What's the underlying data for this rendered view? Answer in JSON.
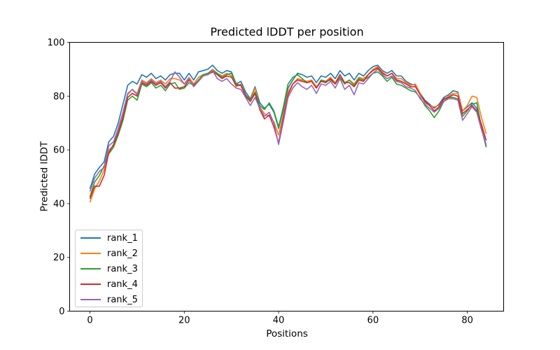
{
  "chart_data": {
    "type": "line",
    "title": "Predicted lDDT per position",
    "xlabel": "Positions",
    "ylabel": "Predicted lDDT",
    "xlim": [
      -4.3,
      87.7
    ],
    "ylim": [
      0,
      100
    ],
    "xticks": [
      0,
      20,
      40,
      60,
      80
    ],
    "yticks": [
      0,
      20,
      40,
      60,
      80,
      100
    ],
    "grid": false,
    "legend_position": "lower left",
    "x": {
      "start": 0,
      "step": 1,
      "count": 85
    },
    "series": [
      {
        "name": "rank_1",
        "color": "#1f77b4",
        "values": [
          45.5,
          51,
          53.5,
          55.5,
          63,
          65,
          70,
          77,
          84,
          85.5,
          84.5,
          88,
          87,
          88.5,
          86.5,
          87.5,
          86,
          88,
          88.5,
          88.5,
          86,
          88.5,
          86,
          89,
          89.5,
          90,
          91.5,
          89.5,
          88.5,
          89.5,
          89,
          84.5,
          85.5,
          81.5,
          79,
          83.5,
          77.5,
          75.5,
          77,
          74,
          68,
          75,
          83,
          86,
          88.5,
          88,
          87,
          87.5,
          85,
          87.5,
          87,
          88.5,
          86.5,
          89.5,
          87.5,
          88.5,
          86,
          88.5,
          87.5,
          89.5,
          91,
          91.5,
          89.5,
          88.5,
          89.5,
          87.5,
          87.5,
          85.5,
          84.5,
          84,
          81,
          78.5,
          77,
          75.5,
          77,
          79.5,
          80.5,
          82,
          81.5,
          74.5,
          76,
          77.5,
          75.5,
          68,
          61
        ]
      },
      {
        "name": "rank_2",
        "color": "#ff7f0e",
        "values": [
          40.5,
          45.5,
          48.5,
          52.5,
          60,
          61.5,
          66.5,
          73,
          80.5,
          82.5,
          81,
          86,
          85,
          86.5,
          85,
          86,
          84.5,
          86.5,
          86.5,
          86,
          84.5,
          87,
          84.5,
          87,
          88,
          88.5,
          90,
          88.5,
          87.5,
          88.5,
          87.5,
          83.5,
          84.5,
          80.5,
          78.5,
          83,
          76,
          73.5,
          72.5,
          70.5,
          65.5,
          73,
          81.5,
          84.5,
          86.5,
          86,
          85.5,
          86,
          83.5,
          85.5,
          85.5,
          87,
          85,
          88,
          85,
          86,
          84.5,
          87,
          86.5,
          88,
          90,
          91,
          89,
          87.5,
          88.5,
          86.5,
          86.5,
          85,
          84,
          84.5,
          81,
          77.5,
          76.5,
          76,
          76.5,
          78.5,
          80,
          81,
          81,
          74.5,
          76.5,
          80,
          79.5,
          72,
          66
        ]
      },
      {
        "name": "rank_3",
        "color": "#2ca02c",
        "values": [
          42.5,
          48,
          50.5,
          54,
          58.5,
          61,
          65.5,
          71,
          78.5,
          80,
          78.5,
          84.5,
          83.5,
          85,
          83,
          84,
          82,
          84.5,
          85,
          82.5,
          83,
          85,
          84,
          86,
          88,
          88.5,
          89.5,
          88.5,
          87,
          88,
          88.5,
          84.5,
          84,
          80.5,
          78.5,
          81.5,
          76.5,
          75,
          77.5,
          74.5,
          68.5,
          76,
          84.5,
          87,
          88,
          86.5,
          85,
          85.5,
          83,
          86,
          85.5,
          86,
          84.5,
          87,
          84.5,
          86,
          84,
          86.5,
          86,
          87,
          88.5,
          89,
          87.5,
          85.5,
          87,
          84.5,
          84,
          83,
          82,
          81.5,
          79.5,
          76.5,
          74.5,
          72,
          74.5,
          78,
          79.5,
          79.5,
          79,
          72.5,
          74.5,
          77,
          77.5,
          68.5,
          61.5
        ]
      },
      {
        "name": "rank_4",
        "color": "#d62728",
        "values": [
          41.8,
          46.5,
          46.5,
          50.5,
          59,
          62,
          66.5,
          72,
          79.5,
          81,
          80,
          85,
          84,
          85.5,
          84,
          85,
          83,
          85,
          83,
          83,
          83.5,
          86,
          84,
          85.5,
          87.5,
          88,
          89,
          88,
          86.5,
          87.5,
          87,
          84,
          84,
          80,
          78,
          81,
          75,
          71.5,
          73,
          68.5,
          62.5,
          72,
          80.5,
          84.5,
          86,
          85.5,
          85,
          85.5,
          83,
          85.5,
          85,
          86.5,
          84.5,
          88,
          85,
          85,
          83.5,
          86,
          85.5,
          88,
          89.5,
          90.5,
          88.5,
          87.5,
          88.5,
          86,
          85.5,
          84.5,
          83.5,
          83.5,
          80.5,
          78,
          76.5,
          74.5,
          76,
          79,
          79.5,
          80.5,
          80,
          73.5,
          75,
          76.5,
          74.5,
          69.5,
          63.5
        ]
      },
      {
        "name": "rank_5",
        "color": "#9467bd",
        "values": [
          44.5,
          49.5,
          52,
          53.5,
          61.5,
          63,
          68,
          74,
          81,
          82.5,
          80.5,
          85.5,
          84.5,
          86,
          84.5,
          85.5,
          83.5,
          85.5,
          89,
          87,
          84.5,
          86.5,
          83.5,
          85.5,
          87.5,
          88,
          89.5,
          86.5,
          85.5,
          86.5,
          84.5,
          83,
          82.5,
          79.5,
          76.5,
          79.5,
          75.5,
          72.5,
          74,
          70,
          62,
          70.5,
          79.5,
          83,
          85,
          83.5,
          82.5,
          84,
          81,
          84.5,
          84,
          85.5,
          83,
          86.5,
          82.5,
          84,
          80.5,
          85,
          84.5,
          86.5,
          88.5,
          90,
          88,
          86.5,
          87.5,
          85.5,
          85,
          83.5,
          83,
          82,
          79,
          77,
          75.5,
          74,
          75.5,
          78,
          79,
          79,
          78.5,
          71,
          73.5,
          76,
          74,
          67.5,
          62
        ]
      }
    ]
  }
}
